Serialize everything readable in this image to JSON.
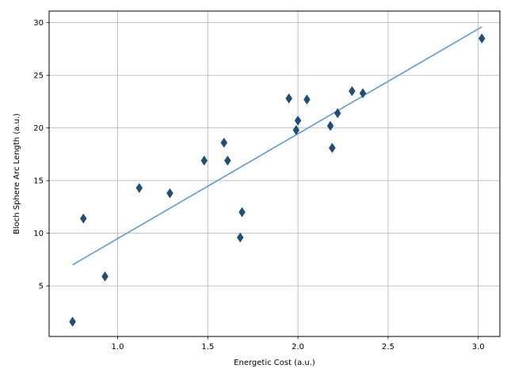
{
  "chart_data": {
    "type": "scatter",
    "xlabel": "Energetic Cost (a.u.)",
    "ylabel": "Bloch Sphere Arc Length (a.u.)",
    "xlim": [
      0.62,
      3.12
    ],
    "ylim": [
      0.2,
      31.1
    ],
    "xticks": [
      "1.0",
      "1.5",
      "2.0",
      "2.5",
      "3.0"
    ],
    "yticks": [
      "5",
      "10",
      "15",
      "20",
      "25",
      "30"
    ],
    "grid": true,
    "marker": "thin-diamond",
    "colors": {
      "points": "#1f4e79",
      "fit_line": "#5b9bd5",
      "grid": "#b0b0b0"
    },
    "points": [
      {
        "x": 0.75,
        "y": 1.6
      },
      {
        "x": 0.81,
        "y": 11.4
      },
      {
        "x": 0.93,
        "y": 5.9
      },
      {
        "x": 1.12,
        "y": 14.3
      },
      {
        "x": 1.29,
        "y": 13.8
      },
      {
        "x": 1.48,
        "y": 16.9
      },
      {
        "x": 1.59,
        "y": 18.6
      },
      {
        "x": 1.61,
        "y": 16.9
      },
      {
        "x": 1.68,
        "y": 9.6
      },
      {
        "x": 1.69,
        "y": 12.0
      },
      {
        "x": 1.95,
        "y": 22.8
      },
      {
        "x": 1.99,
        "y": 19.8
      },
      {
        "x": 2.0,
        "y": 20.7
      },
      {
        "x": 2.05,
        "y": 22.7
      },
      {
        "x": 2.18,
        "y": 20.2
      },
      {
        "x": 2.19,
        "y": 18.1
      },
      {
        "x": 2.22,
        "y": 21.4
      },
      {
        "x": 2.3,
        "y": 23.5
      },
      {
        "x": 2.36,
        "y": 23.3
      },
      {
        "x": 3.02,
        "y": 28.5
      }
    ],
    "fit_line": {
      "x": [
        0.75,
        3.02
      ],
      "y": [
        7.0,
        29.6
      ]
    }
  }
}
